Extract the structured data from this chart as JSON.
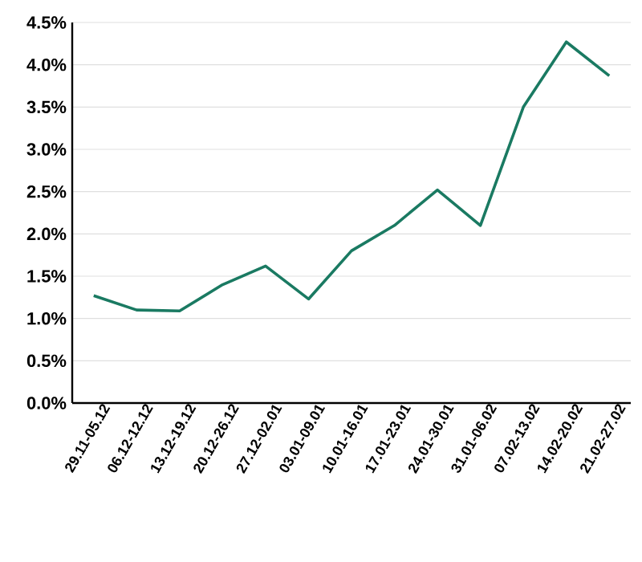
{
  "chart_data": {
    "type": "line",
    "categories": [
      "29.11-05.12",
      "06.12-12.12",
      "13.12-19.12",
      "20.12-26.12",
      "27.12-02.01",
      "03.01-09.01",
      "10.01-16.01",
      "17.01-23.01",
      "24.01-30.01",
      "31.01-06.02",
      "07.02-13.02",
      "14.02-20.02",
      "21.02-27.02"
    ],
    "series": [
      {
        "color": "#1a7a62",
        "values": [
          1.27,
          1.1,
          1.09,
          1.4,
          1.62,
          1.23,
          1.8,
          2.1,
          2.52,
          2.1,
          3.5,
          4.27,
          3.87
        ]
      }
    ],
    "ylim": [
      0,
      4.5
    ],
    "yticks": [
      {
        "value": 0,
        "label": "0.0%"
      },
      {
        "value": 0.5,
        "label": "0.5%"
      },
      {
        "value": 1,
        "label": "1.0%"
      },
      {
        "value": 1.5,
        "label": "1.5%"
      },
      {
        "value": 2,
        "label": "2.0%"
      },
      {
        "value": 2.5,
        "label": "2.5%"
      },
      {
        "value": 3,
        "label": "3.0%"
      },
      {
        "value": 3.5,
        "label": "3.5%"
      },
      {
        "value": 4,
        "label": "4.0%"
      },
      {
        "value": 4.5,
        "label": "4.5%"
      }
    ],
    "grid": "y",
    "legend": false,
    "marker": "none",
    "line_style": "solid"
  }
}
